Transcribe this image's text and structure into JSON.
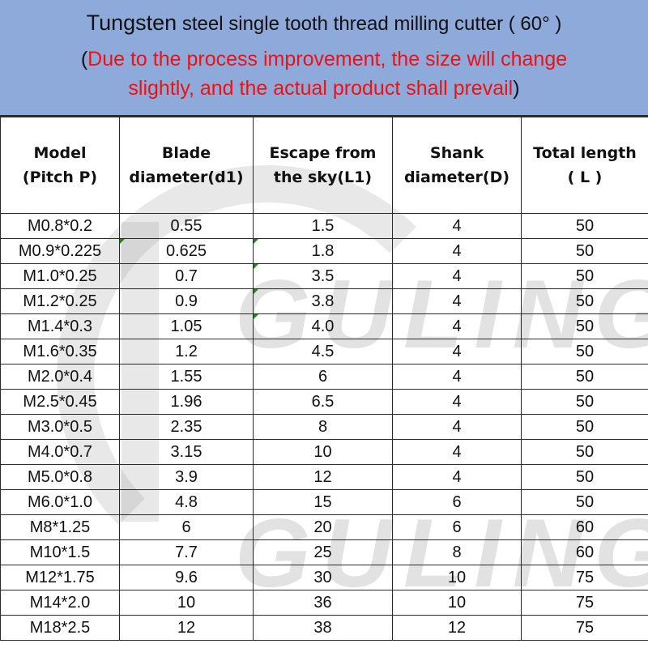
{
  "banner": {
    "title_lead": "Tungsten",
    "title_rest": " steel single tooth thread milling cutter ( 60° )",
    "note_open": "(",
    "note_line1": "Due to the process improvement, the size will change",
    "note_line2": "slightly, and the actual product shall prevail",
    "note_close": ")",
    "background_color": "#8eaadb",
    "note_color": "#ee1111"
  },
  "watermark": {
    "text": "GULING"
  },
  "table": {
    "headers": [
      {
        "line1": "Model",
        "line2": "(Pitch P)"
      },
      {
        "line1": "Blade",
        "line2": "diameter(d1)"
      },
      {
        "line1": "Escape from",
        "line2": "the sky(L1)"
      },
      {
        "line1": "Shank",
        "line2": "diameter(D)"
      },
      {
        "line1": "Total length",
        "line2": "( L )"
      }
    ],
    "rows": [
      [
        "M0.8*0.2",
        "0.55",
        "1.5",
        "4",
        "50"
      ],
      [
        "M0.9*0.225",
        "0.625",
        "1.8",
        "4",
        "50"
      ],
      [
        "M1.0*0.25",
        "0.7",
        "3.5",
        "4",
        "50"
      ],
      [
        "M1.2*0.25",
        "0.9",
        "3.8",
        "4",
        "50"
      ],
      [
        "M1.4*0.3",
        "1.05",
        "4.0",
        "4",
        "50"
      ],
      [
        "M1.6*0.35",
        "1.2",
        "4.5",
        "4",
        "50"
      ],
      [
        "M2.0*0.4",
        "1.55",
        "6",
        "4",
        "50"
      ],
      [
        "M2.5*0.45",
        "1.96",
        "6.5",
        "4",
        "50"
      ],
      [
        "M3.0*0.5",
        "2.35",
        "8",
        "4",
        "50"
      ],
      [
        "M4.0*0.7",
        "3.15",
        "10",
        "4",
        "50"
      ],
      [
        "M5.0*0.8",
        "3.9",
        "12",
        "4",
        "50"
      ],
      [
        "M6.0*1.0",
        "4.8",
        "15",
        "6",
        "50"
      ],
      [
        "M8*1.25",
        "6",
        "20",
        "6",
        "60"
      ],
      [
        "M10*1.5",
        "7.7",
        "25",
        "8",
        "60"
      ],
      [
        "M12*1.75",
        "9.6",
        "30",
        "10",
        "75"
      ],
      [
        "M14*2.0",
        "10",
        "36",
        "10",
        "75"
      ],
      [
        "M18*2.5",
        "12",
        "38",
        "12",
        "75"
      ]
    ]
  }
}
